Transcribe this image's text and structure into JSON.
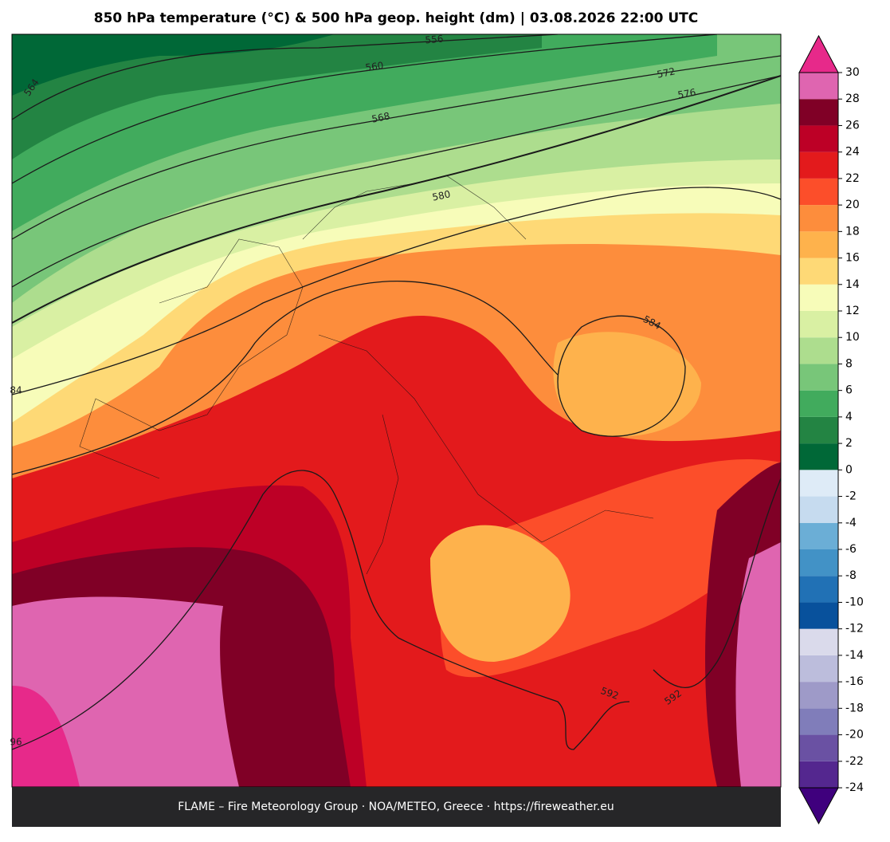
{
  "title": "850 hPa temperature (°C) & 500 hPa geop. height (dm)  |  03.08.2026 22:00 UTC",
  "contour_labels": [
    "556",
    "560",
    "564",
    "568",
    "572",
    "576",
    "580",
    "584",
    "84",
    "592",
    "592",
    "96"
  ],
  "colorbar": {
    "ticks": [
      -24,
      -22,
      -20,
      -18,
      -16,
      -14,
      -12,
      -10,
      -8,
      -6,
      -4,
      -2,
      0,
      2,
      4,
      6,
      8,
      10,
      12,
      14,
      16,
      18,
      20,
      22,
      24,
      26,
      28,
      30
    ],
    "colors": [
      "#54278f",
      "#6a51a3",
      "#807dba",
      "#9e9ac8",
      "#bcbddc",
      "#dadaeb",
      "#08519c",
      "#2171b5",
      "#4292c6",
      "#6baed6",
      "#c6dbef",
      "#deebf7",
      "#006837",
      "#238443",
      "#41ab5d",
      "#78c679",
      "#addd8e",
      "#d9f0a3",
      "#f7fcb9",
      "#fed976",
      "#feb24c",
      "#fd8d3c",
      "#fc4e2a",
      "#e31a1c",
      "#bd0026",
      "#800026",
      "#df65b0"
    ],
    "under_color": "#3f007d",
    "over_color": "#e7298a"
  },
  "footer": "FLAME – Fire Meteorology Group · NOA/METEO, Greece · https://fireweather.eu"
}
